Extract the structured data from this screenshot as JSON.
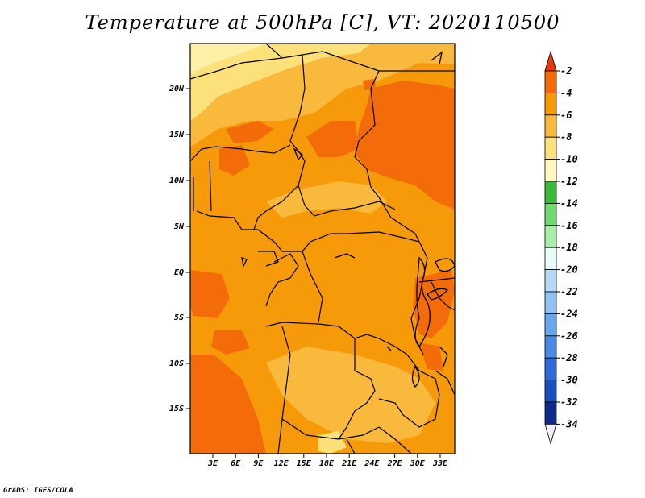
{
  "title": "Temperature at 500hPa [C], VT: 2020110500",
  "credit": "GrADS: IGES/COLA",
  "map": {
    "lat_labels": [
      "20N",
      "15N",
      "10N",
      "5N",
      "EQ",
      "5S",
      "10S",
      "15S"
    ],
    "lon_labels": [
      "3E",
      "6E",
      "9E",
      "12E",
      "15E",
      "18E",
      "21E",
      "24E",
      "27E",
      "30E",
      "33E"
    ]
  },
  "colorbar": {
    "levels": [
      "-2",
      "-4",
      "-6",
      "-8",
      "-10",
      "-12",
      "-14",
      "-16",
      "-18",
      "-20",
      "-22",
      "-24",
      "-26",
      "-28",
      "-30",
      "-32",
      "-34"
    ],
    "colors": [
      "#e83a0f",
      "#f46b0a",
      "#f79a0a",
      "#f9b93c",
      "#fce07a",
      "#fff6c2",
      "#3cb93c",
      "#72d872",
      "#a8eda8",
      "#e8fbf8",
      "#b6d9f8",
      "#8fc1f3",
      "#69a6ec",
      "#4a8ae4",
      "#2f6bd6",
      "#1a4fbf",
      "#0e2a8a",
      "#f4f0fb"
    ]
  }
}
